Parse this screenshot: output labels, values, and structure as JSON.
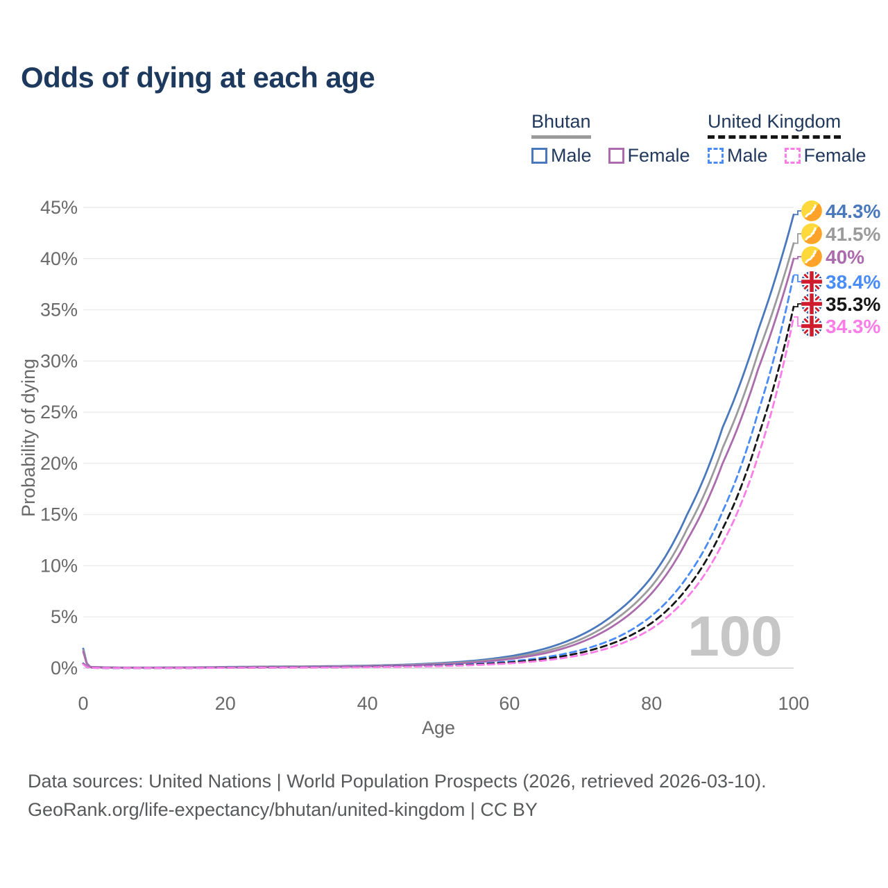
{
  "title": "Odds of dying at each age",
  "legend": {
    "groups": [
      {
        "label": "Bhutan",
        "line_style": "solid",
        "line_color": "#9b9b9b",
        "items": [
          {
            "label": "Male",
            "color": "#4a78bd"
          },
          {
            "label": "Female",
            "color": "#ab6bad"
          }
        ]
      },
      {
        "label": "United Kingdom",
        "line_style": "dashed",
        "line_color": "#161616",
        "items": [
          {
            "label": "Male",
            "color": "#4a8cf7"
          },
          {
            "label": "Female",
            "color": "#fc7ce8"
          }
        ]
      }
    ]
  },
  "chart_data": {
    "type": "line",
    "title": "Odds of dying at each age",
    "xlabel": "Age",
    "ylabel": "Probability of dying",
    "xlim": [
      0,
      100
    ],
    "ylim": [
      0,
      45
    ],
    "x_ticks": [
      "0",
      "20",
      "40",
      "60",
      "80",
      "100"
    ],
    "y_ticks": [
      "0%",
      "5%",
      "10%",
      "15%",
      "20%",
      "25%",
      "30%",
      "35%",
      "40%",
      "45%"
    ],
    "grid": "horizontal-only",
    "legend_position": "top-right",
    "watermark": "100",
    "ages": [
      0,
      1,
      5,
      10,
      15,
      20,
      25,
      30,
      35,
      40,
      45,
      50,
      55,
      60,
      65,
      70,
      75,
      80,
      85,
      90,
      95,
      100
    ],
    "series": [
      {
        "name": "Bhutan Male",
        "country": "Bhutan",
        "sex": "Male",
        "color": "#4a78bd",
        "dash": false,
        "flag": "bhutan",
        "end_label": "44.3%",
        "values": [
          1.9,
          0.12,
          0.05,
          0.05,
          0.07,
          0.11,
          0.14,
          0.16,
          0.19,
          0.24,
          0.33,
          0.48,
          0.72,
          1.15,
          1.9,
          3.2,
          5.4,
          8.9,
          15.0,
          23.5,
          33.0,
          44.3
        ]
      },
      {
        "name": "Bhutan (both sexes)",
        "country": "Bhutan",
        "sex": "Both",
        "color": "#9b9b9b",
        "dash": false,
        "flag": "bhutan",
        "end_label": "41.5%",
        "values": [
          1.75,
          0.11,
          0.045,
          0.045,
          0.06,
          0.09,
          0.12,
          0.14,
          0.165,
          0.21,
          0.29,
          0.42,
          0.63,
          1.0,
          1.65,
          2.8,
          4.8,
          8.0,
          13.6,
          21.5,
          30.8,
          41.5
        ]
      },
      {
        "name": "Bhutan Female",
        "country": "Bhutan",
        "sex": "Female",
        "color": "#ab6bad",
        "dash": false,
        "flag": "bhutan",
        "end_label": "40%",
        "values": [
          1.6,
          0.1,
          0.04,
          0.04,
          0.05,
          0.07,
          0.09,
          0.11,
          0.14,
          0.18,
          0.25,
          0.36,
          0.55,
          0.88,
          1.45,
          2.5,
          4.3,
          7.3,
          12.5,
          20.0,
          29.2,
          40.0
        ]
      },
      {
        "name": "United Kingdom Male",
        "country": "United Kingdom",
        "sex": "Male",
        "color": "#4a8cf7",
        "dash": true,
        "flag": "uk",
        "end_label": "38.4%",
        "values": [
          0.45,
          0.03,
          0.01,
          0.01,
          0.02,
          0.05,
          0.06,
          0.08,
          0.1,
          0.13,
          0.18,
          0.26,
          0.4,
          0.65,
          1.05,
          1.75,
          2.95,
          5.1,
          8.9,
          15.3,
          25.0,
          38.4
        ]
      },
      {
        "name": "United Kingdom (both sexes)",
        "country": "United Kingdom",
        "sex": "Both",
        "color": "#161616",
        "dash": true,
        "flag": "uk",
        "end_label": "35.3%",
        "values": [
          0.42,
          0.028,
          0.009,
          0.009,
          0.015,
          0.04,
          0.05,
          0.065,
          0.08,
          0.11,
          0.155,
          0.22,
          0.34,
          0.55,
          0.9,
          1.5,
          2.55,
          4.4,
          7.8,
          13.6,
          22.6,
          35.3
        ]
      },
      {
        "name": "United Kingdom Female",
        "country": "United Kingdom",
        "sex": "Female",
        "color": "#fc7ce8",
        "dash": true,
        "flag": "uk",
        "end_label": "34.3%",
        "values": [
          0.38,
          0.025,
          0.008,
          0.008,
          0.012,
          0.03,
          0.04,
          0.05,
          0.065,
          0.09,
          0.13,
          0.185,
          0.29,
          0.46,
          0.75,
          1.27,
          2.2,
          3.85,
          6.9,
          12.2,
          20.7,
          34.3
        ]
      }
    ]
  },
  "footer": {
    "line1": "Data sources: United Nations | World Population Prospects (2026, retrieved 2026-03-10).",
    "line2": "GeoRank.org/life-expectancy/bhutan/united-kingdom | CC BY"
  }
}
